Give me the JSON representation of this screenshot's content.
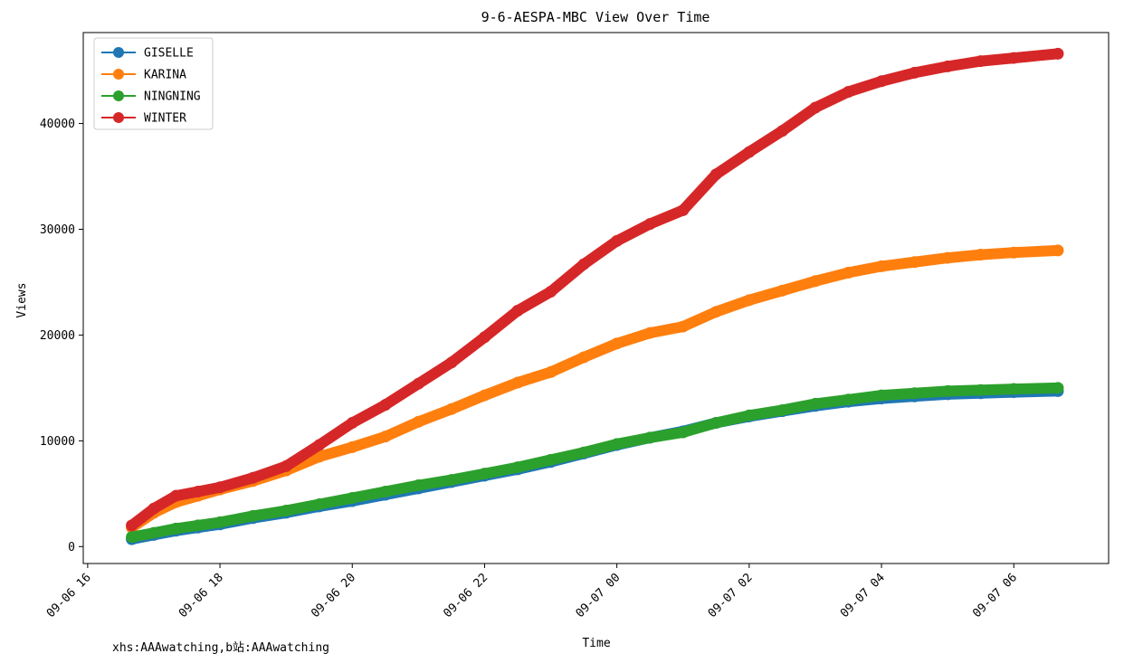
{
  "chart_data": {
    "type": "line",
    "title": "9-6-AESPA-MBC View Over Time",
    "xlabel": "Time",
    "ylabel": "Views",
    "x_ticks": [
      "09-06 16",
      "09-06 18",
      "09-06 20",
      "09-06 22",
      "09-07 00",
      "09-07 02",
      "09-07 04",
      "09-07 06"
    ],
    "y_ticks": [
      "0",
      "10000",
      "20000",
      "30000",
      "40000"
    ],
    "xlim": [
      "09-06 15:56",
      "09-07 07:26"
    ],
    "ylim": [
      -1600,
      48600
    ],
    "grid": false,
    "legend_position": "upper-left",
    "x_times": [
      "09-06 16:40",
      "09-06 17:00",
      "09-06 17:20",
      "09-06 17:40",
      "09-06 18:00",
      "09-06 18:30",
      "09-06 19:00",
      "09-06 19:30",
      "09-06 20:00",
      "09-06 20:30",
      "09-06 21:00",
      "09-06 21:30",
      "09-06 22:00",
      "09-06 22:30",
      "09-06 23:00",
      "09-06 23:30",
      "09-07 00:00",
      "09-07 00:30",
      "09-07 01:00",
      "09-07 01:30",
      "09-07 02:00",
      "09-07 02:30",
      "09-07 03:00",
      "09-07 03:30",
      "09-07 04:00",
      "09-07 04:30",
      "09-07 05:00",
      "09-07 05:30",
      "09-07 06:00",
      "09-07 06:40"
    ],
    "series": [
      {
        "name": "GISELLE",
        "color": "#1f77b4",
        "values": [
          700,
          1100,
          1500,
          1800,
          2100,
          2700,
          3200,
          3800,
          4300,
          4900,
          5500,
          6100,
          6700,
          7300,
          8000,
          8800,
          9600,
          10300,
          10900,
          11700,
          12300,
          12800,
          13300,
          13700,
          14000,
          14200,
          14400,
          14500,
          14600,
          14700
        ]
      },
      {
        "name": "KARINA",
        "color": "#ff7f0e",
        "values": [
          1800,
          3200,
          4200,
          4800,
          5400,
          6200,
          7200,
          8500,
          9400,
          10400,
          11800,
          13000,
          14300,
          15500,
          16500,
          17900,
          19200,
          20200,
          20800,
          22200,
          23300,
          24200,
          25100,
          25900,
          26500,
          26900,
          27300,
          27600,
          27800,
          28000
        ]
      },
      {
        "name": "NINGNING",
        "color": "#2ca02c",
        "values": [
          900,
          1300,
          1700,
          2000,
          2300,
          2900,
          3400,
          4000,
          4600,
          5200,
          5800,
          6300,
          6900,
          7500,
          8200,
          8900,
          9700,
          10300,
          10800,
          11700,
          12400,
          12900,
          13500,
          13900,
          14300,
          14500,
          14700,
          14800,
          14900,
          15000
        ]
      },
      {
        "name": "WINTER",
        "color": "#d62728",
        "values": [
          2000,
          3600,
          4800,
          5200,
          5600,
          6500,
          7600,
          9600,
          11700,
          13400,
          15400,
          17400,
          19800,
          22300,
          24100,
          26700,
          28900,
          30500,
          31800,
          35200,
          37300,
          39300,
          41500,
          43000,
          44000,
          44800,
          45400,
          45900,
          46200,
          46600
        ]
      }
    ]
  },
  "footer_text": "xhs:AAAwatching,b站:AAAwatching"
}
